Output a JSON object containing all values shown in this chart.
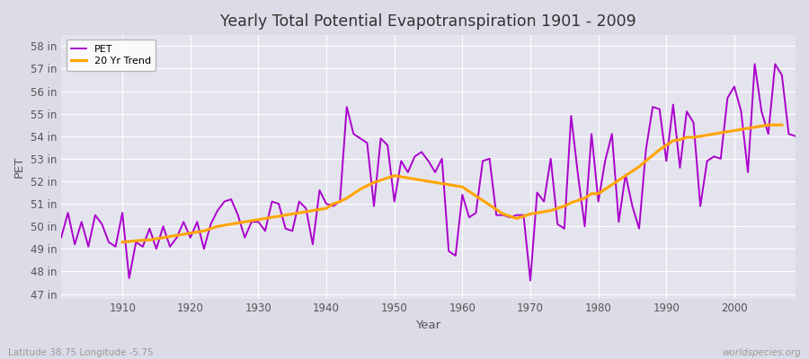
{
  "title": "Yearly Total Potential Evapotranspiration 1901 - 2009",
  "xlabel": "Year",
  "ylabel": "PET",
  "subtitle_left": "Latitude 38.75 Longitude -5.75",
  "subtitle_right": "worldspecies.org",
  "pet_color": "#AA00CC",
  "trend_color": "#FFA500",
  "background_color": "#DCDCE8",
  "plot_bg_color": "#E4E4EE",
  "grid_color": "#FFFFFF",
  "ylim": [
    46.8,
    58.5
  ],
  "ytick_labels": [
    "47 in",
    "48 in",
    "49 in",
    "50 in",
    "51 in",
    "52 in",
    "53 in",
    "54 in",
    "55 in",
    "56 in",
    "57 in",
    "58 in"
  ],
  "ytick_values": [
    47,
    48,
    49,
    50,
    51,
    52,
    53,
    54,
    55,
    56,
    57,
    58
  ],
  "years": [
    1901,
    1902,
    1903,
    1904,
    1905,
    1906,
    1907,
    1908,
    1909,
    1910,
    1911,
    1912,
    1913,
    1914,
    1915,
    1916,
    1917,
    1918,
    1919,
    1920,
    1921,
    1922,
    1923,
    1924,
    1925,
    1926,
    1927,
    1928,
    1929,
    1930,
    1931,
    1932,
    1933,
    1934,
    1935,
    1936,
    1937,
    1938,
    1939,
    1940,
    1941,
    1942,
    1943,
    1944,
    1945,
    1946,
    1947,
    1948,
    1949,
    1950,
    1951,
    1952,
    1953,
    1954,
    1955,
    1956,
    1957,
    1958,
    1959,
    1960,
    1961,
    1962,
    1963,
    1964,
    1965,
    1966,
    1967,
    1968,
    1969,
    1970,
    1971,
    1972,
    1973,
    1974,
    1975,
    1976,
    1977,
    1978,
    1979,
    1980,
    1981,
    1982,
    1983,
    1984,
    1985,
    1986,
    1987,
    1988,
    1989,
    1990,
    1991,
    1992,
    1993,
    1994,
    1995,
    1996,
    1997,
    1998,
    1999,
    2000,
    2001,
    2002,
    2003,
    2004,
    2005,
    2006,
    2007,
    2008,
    2009
  ],
  "pet": [
    49.5,
    50.6,
    49.2,
    50.2,
    49.1,
    50.5,
    50.1,
    49.3,
    49.1,
    50.6,
    47.7,
    49.3,
    49.1,
    49.9,
    49.0,
    50.0,
    49.1,
    49.5,
    50.2,
    49.5,
    50.2,
    49.0,
    50.1,
    50.7,
    51.1,
    51.2,
    50.5,
    49.5,
    50.2,
    50.2,
    49.8,
    51.1,
    51.0,
    49.9,
    49.8,
    51.1,
    50.8,
    49.2,
    51.6,
    51.0,
    50.9,
    51.1,
    55.3,
    54.1,
    53.9,
    53.7,
    50.9,
    53.9,
    53.6,
    51.1,
    52.9,
    52.4,
    53.1,
    53.3,
    52.9,
    52.4,
    53.0,
    48.9,
    48.7,
    51.4,
    50.4,
    50.6,
    52.9,
    53.0,
    50.5,
    50.5,
    50.4,
    50.5,
    50.5,
    47.6,
    51.5,
    51.1,
    53.0,
    50.1,
    49.9,
    54.9,
    52.3,
    50.0,
    54.1,
    51.1,
    52.9,
    54.1,
    50.2,
    52.3,
    50.9,
    49.9,
    53.4,
    55.3,
    55.2,
    52.9,
    55.4,
    52.6,
    55.1,
    54.6,
    50.9,
    52.9,
    53.1,
    53.0,
    55.7,
    56.2,
    55.1,
    52.4,
    57.2,
    55.1,
    54.1,
    57.2,
    56.7,
    54.1,
    54.0
  ],
  "trend": [
    null,
    null,
    null,
    null,
    null,
    null,
    null,
    null,
    null,
    49.3,
    49.33,
    49.36,
    49.38,
    49.4,
    49.45,
    49.5,
    49.55,
    49.6,
    49.65,
    49.7,
    49.75,
    49.8,
    49.9,
    50.0,
    50.05,
    50.1,
    50.15,
    50.2,
    50.25,
    50.3,
    50.35,
    50.4,
    50.45,
    50.5,
    50.55,
    50.6,
    50.65,
    50.7,
    50.75,
    50.8,
    51.0,
    51.1,
    51.25,
    51.45,
    51.65,
    51.8,
    51.95,
    52.05,
    52.15,
    52.25,
    52.2,
    52.15,
    52.1,
    52.05,
    52.0,
    51.95,
    51.9,
    51.85,
    51.8,
    51.75,
    51.55,
    51.35,
    51.15,
    50.95,
    50.75,
    50.55,
    50.45,
    50.35,
    50.45,
    50.55,
    50.6,
    50.65,
    50.7,
    50.8,
    50.9,
    51.05,
    51.15,
    51.25,
    51.45,
    51.45,
    51.65,
    51.85,
    52.05,
    52.25,
    52.45,
    52.65,
    52.9,
    53.15,
    53.4,
    53.6,
    53.8,
    53.85,
    53.95,
    53.95,
    54.0,
    54.05,
    54.1,
    54.15,
    54.2,
    54.25,
    54.3,
    54.35,
    54.4,
    54.45,
    54.5,
    54.5,
    54.5,
    null
  ]
}
